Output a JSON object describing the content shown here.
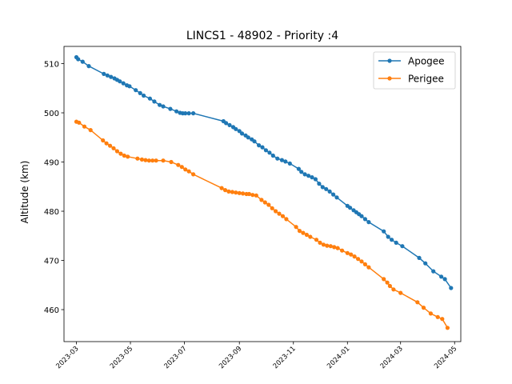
{
  "chart_data": {
    "type": "line",
    "title": "LINCS1 - 48902 - Priority :4",
    "xlabel": "",
    "ylabel": "Altitude (km)",
    "xlim": [
      "2023-02-15",
      "2024-05-08"
    ],
    "ylim": [
      453.5,
      513.5
    ],
    "x_ticks": [
      "2023-03",
      "2023-05",
      "2023-07",
      "2023-09",
      "2023-11",
      "2024-01",
      "2024-03",
      "2024-05"
    ],
    "y_ticks": [
      460,
      470,
      480,
      490,
      500,
      510
    ],
    "legend_position": "top-right",
    "grid": false,
    "series": [
      {
        "name": "Apogee",
        "color": "#1f77b4",
        "points": [
          [
            "2023-03-01",
            511.3
          ],
          [
            "2023-03-03",
            510.9
          ],
          [
            "2023-03-08",
            510.4
          ],
          [
            "2023-03-15",
            509.5
          ],
          [
            "2023-04-01",
            507.9
          ],
          [
            "2023-04-05",
            507.6
          ],
          [
            "2023-04-09",
            507.3
          ],
          [
            "2023-04-13",
            507.0
          ],
          [
            "2023-04-16",
            506.7
          ],
          [
            "2023-04-19",
            506.4
          ],
          [
            "2023-04-23",
            506.0
          ],
          [
            "2023-04-27",
            505.6
          ],
          [
            "2023-04-30",
            505.4
          ],
          [
            "2023-05-07",
            504.6
          ],
          [
            "2023-05-12",
            504.0
          ],
          [
            "2023-05-16",
            503.5
          ],
          [
            "2023-05-23",
            502.9
          ],
          [
            "2023-05-28",
            502.3
          ],
          [
            "2023-06-03",
            501.6
          ],
          [
            "2023-06-07",
            501.3
          ],
          [
            "2023-06-15",
            500.8
          ],
          [
            "2023-06-22",
            500.3
          ],
          [
            "2023-06-26",
            500.0
          ],
          [
            "2023-06-29",
            499.9
          ],
          [
            "2023-07-02",
            499.9
          ],
          [
            "2023-07-06",
            499.9
          ],
          [
            "2023-07-11",
            499.9
          ],
          [
            "2023-08-14",
            498.3
          ],
          [
            "2023-08-17",
            497.9
          ],
          [
            "2023-08-21",
            497.5
          ],
          [
            "2023-08-25",
            497.1
          ],
          [
            "2023-08-28",
            496.7
          ],
          [
            "2023-09-01",
            496.3
          ],
          [
            "2023-09-04",
            495.8
          ],
          [
            "2023-09-08",
            495.4
          ],
          [
            "2023-09-11",
            495.0
          ],
          [
            "2023-09-15",
            494.6
          ],
          [
            "2023-09-18",
            494.2
          ],
          [
            "2023-09-23",
            493.4
          ],
          [
            "2023-09-27",
            493.0
          ],
          [
            "2023-10-01",
            492.4
          ],
          [
            "2023-10-05",
            491.9
          ],
          [
            "2023-10-09",
            491.3
          ],
          [
            "2023-10-14",
            490.7
          ],
          [
            "2023-10-19",
            490.4
          ],
          [
            "2023-10-23",
            490.1
          ],
          [
            "2023-10-28",
            489.7
          ],
          [
            "2023-11-07",
            488.6
          ],
          [
            "2023-11-10",
            488.0
          ],
          [
            "2023-11-14",
            487.5
          ],
          [
            "2023-11-18",
            487.2
          ],
          [
            "2023-11-22",
            486.9
          ],
          [
            "2023-11-26",
            486.5
          ],
          [
            "2023-11-30",
            485.6
          ],
          [
            "2023-12-04",
            484.9
          ],
          [
            "2023-12-08",
            484.5
          ],
          [
            "2023-12-12",
            484.0
          ],
          [
            "2023-12-16",
            483.4
          ],
          [
            "2023-12-20",
            482.8
          ],
          [
            "2024-01-01",
            481.1
          ],
          [
            "2024-01-04",
            480.7
          ],
          [
            "2024-01-08",
            480.2
          ],
          [
            "2024-01-11",
            479.8
          ],
          [
            "2024-01-14",
            479.4
          ],
          [
            "2024-01-17",
            479.0
          ],
          [
            "2024-01-21",
            478.4
          ],
          [
            "2024-01-25",
            477.8
          ],
          [
            "2024-02-11",
            475.9
          ],
          [
            "2024-02-16",
            474.8
          ],
          [
            "2024-02-20",
            474.2
          ],
          [
            "2024-02-25",
            473.6
          ],
          [
            "2024-03-03",
            472.9
          ],
          [
            "2024-03-22",
            470.5
          ],
          [
            "2024-03-29",
            469.4
          ],
          [
            "2024-04-07",
            467.8
          ],
          [
            "2024-04-16",
            466.7
          ],
          [
            "2024-04-20",
            466.2
          ],
          [
            "2024-04-27",
            464.4
          ]
        ]
      },
      {
        "name": "Perigee",
        "color": "#ff7f0e",
        "points": [
          [
            "2023-03-01",
            498.2
          ],
          [
            "2023-03-04",
            498.0
          ],
          [
            "2023-03-10",
            497.2
          ],
          [
            "2023-03-17",
            496.5
          ],
          [
            "2023-03-31",
            494.4
          ],
          [
            "2023-04-04",
            493.8
          ],
          [
            "2023-04-08",
            493.3
          ],
          [
            "2023-04-12",
            492.8
          ],
          [
            "2023-04-16",
            492.2
          ],
          [
            "2023-04-20",
            491.7
          ],
          [
            "2023-04-24",
            491.3
          ],
          [
            "2023-04-28",
            491.1
          ],
          [
            "2023-05-09",
            490.7
          ],
          [
            "2023-05-14",
            490.5
          ],
          [
            "2023-05-18",
            490.4
          ],
          [
            "2023-05-22",
            490.3
          ],
          [
            "2023-05-26",
            490.3
          ],
          [
            "2023-05-30",
            490.3
          ],
          [
            "2023-06-07",
            490.3
          ],
          [
            "2023-06-16",
            490.0
          ],
          [
            "2023-06-24",
            489.4
          ],
          [
            "2023-06-28",
            489.0
          ],
          [
            "2023-07-02",
            488.5
          ],
          [
            "2023-07-06",
            488.1
          ],
          [
            "2023-07-11",
            487.5
          ],
          [
            "2023-08-12",
            484.7
          ],
          [
            "2023-08-16",
            484.3
          ],
          [
            "2023-08-20",
            484.0
          ],
          [
            "2023-08-24",
            483.9
          ],
          [
            "2023-08-28",
            483.8
          ],
          [
            "2023-09-01",
            483.7
          ],
          [
            "2023-09-05",
            483.6
          ],
          [
            "2023-09-09",
            483.5
          ],
          [
            "2023-09-12",
            483.5
          ],
          [
            "2023-09-16",
            483.3
          ],
          [
            "2023-09-20",
            483.2
          ],
          [
            "2023-09-26",
            482.3
          ],
          [
            "2023-09-30",
            481.8
          ],
          [
            "2023-10-04",
            481.3
          ],
          [
            "2023-10-08",
            480.6
          ],
          [
            "2023-10-12",
            480.0
          ],
          [
            "2023-10-16",
            479.5
          ],
          [
            "2023-10-20",
            479.0
          ],
          [
            "2023-10-24",
            478.4
          ],
          [
            "2023-11-04",
            476.8
          ],
          [
            "2023-11-08",
            476.0
          ],
          [
            "2023-11-12",
            475.6
          ],
          [
            "2023-11-16",
            475.2
          ],
          [
            "2023-11-20",
            474.8
          ],
          [
            "2023-11-27",
            474.2
          ],
          [
            "2023-12-01",
            473.6
          ],
          [
            "2023-12-05",
            473.2
          ],
          [
            "2023-12-09",
            473.0
          ],
          [
            "2023-12-13",
            472.9
          ],
          [
            "2023-12-17",
            472.7
          ],
          [
            "2023-12-21",
            472.5
          ],
          [
            "2023-12-26",
            472.0
          ],
          [
            "2024-01-01",
            471.5
          ],
          [
            "2024-01-05",
            471.2
          ],
          [
            "2024-01-09",
            470.8
          ],
          [
            "2024-01-13",
            470.3
          ],
          [
            "2024-01-17",
            469.8
          ],
          [
            "2024-01-21",
            469.2
          ],
          [
            "2024-01-25",
            468.6
          ],
          [
            "2024-02-11",
            466.2
          ],
          [
            "2024-02-15",
            465.5
          ],
          [
            "2024-02-18",
            464.8
          ],
          [
            "2024-02-22",
            464.1
          ],
          [
            "2024-03-01",
            463.4
          ],
          [
            "2024-03-20",
            461.5
          ],
          [
            "2024-03-27",
            460.4
          ],
          [
            "2024-04-04",
            459.2
          ],
          [
            "2024-04-12",
            458.5
          ],
          [
            "2024-04-17",
            458.1
          ],
          [
            "2024-04-23",
            456.3
          ]
        ]
      }
    ]
  }
}
